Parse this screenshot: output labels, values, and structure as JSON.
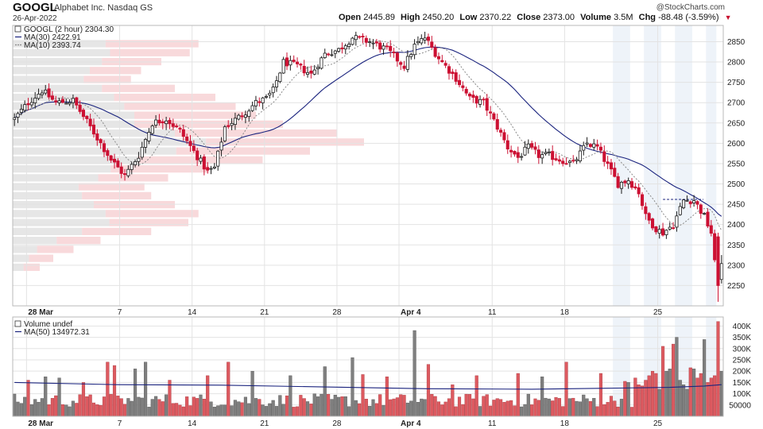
{
  "header": {
    "symbol": "GOOGL",
    "company": "Alphabet Inc.",
    "exchange": "Nasdaq GS",
    "date": "26-Apr-2022",
    "copyright": "@StockCharts.com",
    "quote": {
      "open_label": "Open",
      "open": "2445.89",
      "high_label": "High",
      "high": "2450.20",
      "low_label": "Low",
      "low": "2370.22",
      "close_label": "Close",
      "close": "2373.00",
      "volume_label": "Volume",
      "volume": "3.5M",
      "chg_label": "Chg",
      "chg": "-88.48 (-3.59%)"
    }
  },
  "colors": {
    "up": "#1a1a1a",
    "down": "#cc1133",
    "ma30": "#1a237e",
    "ma10": "#888888",
    "vol_up": "#7f7f7f",
    "vol_down": "#dd5a60",
    "shade": "#eef3f9",
    "grid": "#e3e3e3"
  },
  "chart_data": [
    {
      "type": "candlestick",
      "legend": [
        {
          "label": "GOOGL (2 hour) 2304.30",
          "style": "box"
        },
        {
          "label": "MA(30) 2422.91",
          "style": "solid"
        },
        {
          "label": "MA(10) 2393.74",
          "style": "dotted"
        }
      ],
      "ylim": [
        2200,
        2890
      ],
      "y_ticks": [
        2250,
        2300,
        2350,
        2400,
        2450,
        2500,
        2550,
        2600,
        2650,
        2700,
        2750,
        2800,
        2850
      ],
      "x_ticks": [
        {
          "label": "28 Mar",
          "bold": true,
          "index": 4
        },
        {
          "label": "7",
          "bold": false,
          "index": 31
        },
        {
          "label": "14",
          "bold": false,
          "index": 52
        },
        {
          "label": "21",
          "bold": false,
          "index": 73
        },
        {
          "label": "28",
          "bold": false,
          "index": 94
        },
        {
          "label": "Apr 4",
          "bold": true,
          "index": 112
        },
        {
          "label": "11",
          "bold": false,
          "index": 139
        },
        {
          "label": "18",
          "bold": false,
          "index": 160
        },
        {
          "label": "25",
          "bold": false,
          "index": 187
        }
      ],
      "reference_line": 2462,
      "shaded_bars": [
        [
          174,
          178
        ],
        [
          183,
          187
        ],
        [
          192,
          196
        ],
        [
          201,
          203
        ]
      ],
      "waypoints": [
        [
          0,
          2660
        ],
        [
          4,
          2700
        ],
        [
          8,
          2730
        ],
        [
          12,
          2700
        ],
        [
          17,
          2705
        ],
        [
          22,
          2640
        ],
        [
          28,
          2560
        ],
        [
          32,
          2520
        ],
        [
          36,
          2570
        ],
        [
          40,
          2650
        ],
        [
          44,
          2660
        ],
        [
          48,
          2630
        ],
        [
          52,
          2580
        ],
        [
          56,
          2530
        ],
        [
          58,
          2540
        ],
        [
          61,
          2640
        ],
        [
          66,
          2670
        ],
        [
          70,
          2700
        ],
        [
          73,
          2710
        ],
        [
          75,
          2730
        ],
        [
          78,
          2800
        ],
        [
          82,
          2790
        ],
        [
          86,
          2770
        ],
        [
          90,
          2820
        ],
        [
          94,
          2830
        ],
        [
          98,
          2860
        ],
        [
          103,
          2850
        ],
        [
          108,
          2830
        ],
        [
          113,
          2790
        ],
        [
          116,
          2840
        ],
        [
          119,
          2860
        ],
        [
          123,
          2810
        ],
        [
          128,
          2760
        ],
        [
          132,
          2710
        ],
        [
          136,
          2700
        ],
        [
          140,
          2640
        ],
        [
          143,
          2590
        ],
        [
          146,
          2565
        ],
        [
          149,
          2590
        ],
        [
          152,
          2570
        ],
        [
          155,
          2570
        ],
        [
          158,
          2560
        ],
        [
          162,
          2550
        ],
        [
          166,
          2600
        ],
        [
          169,
          2590
        ],
        [
          171,
          2560
        ],
        [
          173,
          2530
        ],
        [
          175,
          2500
        ],
        [
          178,
          2510
        ],
        [
          181,
          2480
        ],
        [
          183,
          2420
        ],
        [
          186,
          2390
        ],
        [
          188,
          2380
        ],
        [
          191,
          2400
        ],
        [
          194,
          2460
        ],
        [
          197,
          2460
        ],
        [
          200,
          2420
        ],
        [
          202,
          2380
        ],
        [
          204,
          2230
        ],
        [
          205,
          2304
        ]
      ],
      "volume_profile": {
        "bins": [
          [
            2845,
            275,
            0.5
          ],
          [
            2823,
            262,
            0.45
          ],
          [
            2801,
            220,
            0.4
          ],
          [
            2779,
            190,
            0.4
          ],
          [
            2757,
            175,
            0.4
          ],
          [
            2735,
            240,
            0.45
          ],
          [
            2713,
            300,
            0.5
          ],
          [
            2691,
            330,
            0.5
          ],
          [
            2669,
            360,
            0.5
          ],
          [
            2647,
            400,
            0.55
          ],
          [
            2625,
            480,
            0.5
          ],
          [
            2603,
            520,
            0.45
          ],
          [
            2581,
            440,
            0.45
          ],
          [
            2559,
            370,
            0.5
          ],
          [
            2537,
            290,
            0.5
          ],
          [
            2515,
            230,
            0.45
          ],
          [
            2493,
            195,
            0.5
          ],
          [
            2471,
            205,
            0.5
          ],
          [
            2449,
            240,
            0.5
          ],
          [
            2427,
            275,
            0.5
          ],
          [
            2405,
            260,
            0.45
          ],
          [
            2383,
            205,
            0.5
          ],
          [
            2361,
            130,
            0.5
          ],
          [
            2339,
            90,
            0.6
          ],
          [
            2317,
            60,
            0.6
          ],
          [
            2295,
            40,
            0.6
          ]
        ]
      }
    },
    {
      "type": "bar",
      "legend": [
        {
          "label": "Volume undef",
          "style": "box"
        },
        {
          "label": "MA(50) 134972.31",
          "style": "solid"
        }
      ],
      "ylim": [
        0,
        440000
      ],
      "y_ticks": [
        {
          "value": 50000,
          "label": "50000"
        },
        {
          "value": 100000,
          "label": "100K"
        },
        {
          "value": 150000,
          "label": "150K"
        },
        {
          "value": 200000,
          "label": "200K"
        },
        {
          "value": 250000,
          "label": "250K"
        },
        {
          "value": 300000,
          "label": "300K"
        },
        {
          "value": 350000,
          "label": "350K"
        },
        {
          "value": 400000,
          "label": "400K"
        }
      ],
      "ma50_points": [
        [
          0,
          150000
        ],
        [
          30,
          140000
        ],
        [
          60,
          138000
        ],
        [
          90,
          130000
        ],
        [
          120,
          122000
        ],
        [
          150,
          120000
        ],
        [
          175,
          125000
        ],
        [
          190,
          128000
        ],
        [
          200,
          134000
        ],
        [
          205,
          140000
        ]
      ],
      "spike_volumes": {
        "4": 160000,
        "9": 175000,
        "13": 170000,
        "20": 150000,
        "27": 240000,
        "29": 225000,
        "35": 210000,
        "38": 240000,
        "45": 160000,
        "56": 180000,
        "62": 240000,
        "69": 200000,
        "80": 180000,
        "90": 220000,
        "98": 260000,
        "101": 185000,
        "108": 175000,
        "116": 380000,
        "120": 230000,
        "127": 140000,
        "134": 180000,
        "146": 190000,
        "153": 175000,
        "160": 240000,
        "170": 190000,
        "177": 155000,
        "178": 150000,
        "180": 170000,
        "181": 140000,
        "182": 135000,
        "183": 160000,
        "184": 180000,
        "185": 200000,
        "186": 190000,
        "187": 120000,
        "188": 310000,
        "189": 200000,
        "190": 210000,
        "191": 320000,
        "192": 350000,
        "193": 160000,
        "194": 140000,
        "195": 120000,
        "196": 215000,
        "197": 210000,
        "198": 170000,
        "199": 190000,
        "200": 340000,
        "201": 150000,
        "202": 170000,
        "203": 180000,
        "204": 420000,
        "205": 200000
      }
    }
  ]
}
